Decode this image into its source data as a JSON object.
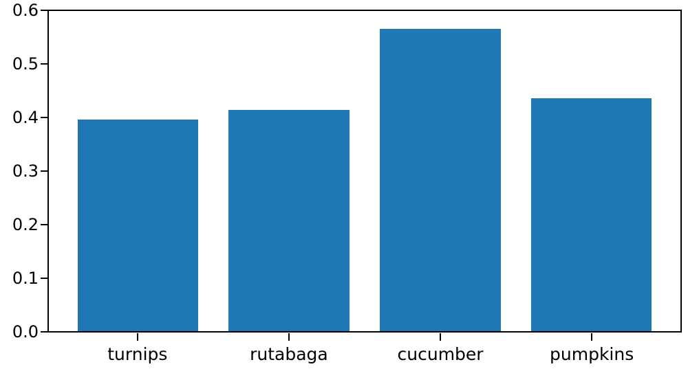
{
  "chart_data": {
    "type": "bar",
    "categories": [
      "turnips",
      "rutabaga",
      "cucumber",
      "pumpkins"
    ],
    "values": [
      0.396,
      0.415,
      0.566,
      0.437
    ],
    "x": [
      0,
      1,
      2,
      3
    ],
    "title": "",
    "xlabel": "",
    "ylabel": "",
    "xlim": [
      -0.59,
      3.59
    ],
    "ylim": [
      0,
      0.6
    ],
    "yticks": [
      0.0,
      0.1,
      0.2,
      0.3,
      0.4,
      0.5,
      0.6
    ],
    "ytick_labels": [
      "0.0",
      "0.1",
      "0.2",
      "0.3",
      "0.4",
      "0.5",
      "0.6"
    ],
    "bar_width_data_units": 0.8,
    "grid": false,
    "legend": null,
    "bar_color": "#1f77b4"
  },
  "colors": {
    "bar": "#1f77b4",
    "axis": "#000000",
    "tick_text": "#000000",
    "background": "#ffffff"
  }
}
